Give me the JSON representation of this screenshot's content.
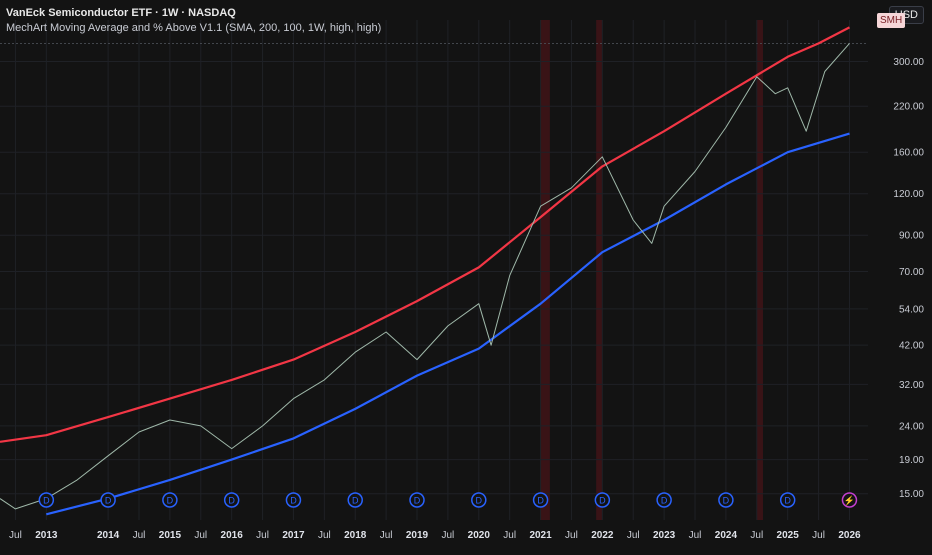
{
  "header": {
    "title": "VanEck Semiconductor ETF · 1W · NASDAQ",
    "indicator": "MechArt Moving Average and % Above V1.1 (SMA, 200, 100, 1W, high, high)",
    "currency": "USD",
    "symbol_badge": "SMH"
  },
  "colors": {
    "upper_band": "#f23645",
    "sma": "#2962ff",
    "price": "#9fb8a9",
    "highlight": "#4a1418",
    "dividend_marker": "#2962ff",
    "split_marker": "#c33fd0"
  },
  "icons": {
    "dividend": "D",
    "split": "⚡"
  },
  "chart_data": {
    "type": "line",
    "title": "VanEck Semiconductor ETF · 1W · NASDAQ",
    "y_scale": "log",
    "ylim": [
      12.5,
      400
    ],
    "xlim": [
      2012.25,
      2026.3
    ],
    "y_ticks": [
      "15.00",
      "19.00",
      "24.00",
      "32.00",
      "42.00",
      "54.00",
      "70.00",
      "90.00",
      "120.00",
      "160.00",
      "220.00",
      "300.00"
    ],
    "x_ticks": [
      {
        "label": "Jul",
        "x": 2012.5
      },
      {
        "label": "2013",
        "x": 2013.0
      },
      {
        "label": "2014",
        "x": 2014.0
      },
      {
        "label": "Jul",
        "x": 2014.5
      },
      {
        "label": "2015",
        "x": 2015.0
      },
      {
        "label": "Jul",
        "x": 2015.5
      },
      {
        "label": "2016",
        "x": 2016.0
      },
      {
        "label": "Jul",
        "x": 2016.5
      },
      {
        "label": "2017",
        "x": 2017.0
      },
      {
        "label": "Jul",
        "x": 2017.5
      },
      {
        "label": "2018",
        "x": 2018.0
      },
      {
        "label": "Jul",
        "x": 2018.5
      },
      {
        "label": "2019",
        "x": 2019.0
      },
      {
        "label": "Jul",
        "x": 2019.5
      },
      {
        "label": "2020",
        "x": 2020.0
      },
      {
        "label": "Jul",
        "x": 2020.5
      },
      {
        "label": "2021",
        "x": 2021.0
      },
      {
        "label": "Jul",
        "x": 2021.5
      },
      {
        "label": "2022",
        "x": 2022.0
      },
      {
        "label": "Jul",
        "x": 2022.5
      },
      {
        "label": "2023",
        "x": 2023.0
      },
      {
        "label": "Jul",
        "x": 2023.5
      },
      {
        "label": "2024",
        "x": 2024.0
      },
      {
        "label": "Jul",
        "x": 2024.5
      },
      {
        "label": "2025",
        "x": 2025.0
      },
      {
        "label": "Jul",
        "x": 2025.5
      },
      {
        "label": "2026",
        "x": 2026.0
      }
    ],
    "last_price": 340,
    "highlight_periods": [
      [
        2021.0,
        2021.15
      ],
      [
        2021.9,
        2022.0
      ],
      [
        2024.5,
        2024.6
      ]
    ],
    "dividend_markers": [
      2013.0,
      2014.0,
      2015.0,
      2016.0,
      2017.0,
      2018.0,
      2019.0,
      2020.0,
      2021.0,
      2022.0,
      2023.0,
      2024.0,
      2025.0
    ],
    "split_marker": 2026.0,
    "series": [
      {
        "name": "Upper band",
        "x": [
          2012.25,
          2013.0,
          2014.0,
          2015.0,
          2016.0,
          2017.0,
          2018.0,
          2019.0,
          2020.0,
          2021.0,
          2022.0,
          2023.0,
          2024.0,
          2025.0,
          2025.5,
          2026.0
        ],
        "values": [
          21.5,
          22.5,
          25.5,
          29,
          33,
          38,
          46,
          57,
          72,
          102,
          145,
          185,
          240,
          310,
          340,
          380
        ]
      },
      {
        "name": "SMA 200",
        "x": [
          2013.0,
          2014.0,
          2015.0,
          2016.0,
          2017.0,
          2018.0,
          2019.0,
          2020.0,
          2021.0,
          2022.0,
          2023.0,
          2024.0,
          2025.0,
          2026.0
        ],
        "values": [
          13,
          14.5,
          16.5,
          19,
          22,
          27,
          34,
          41,
          56,
          80,
          100,
          128,
          160,
          182
        ]
      },
      {
        "name": "Price",
        "x": [
          2012.25,
          2012.5,
          2013.0,
          2013.5,
          2014.0,
          2014.5,
          2015.0,
          2015.5,
          2016.0,
          2016.5,
          2017.0,
          2017.5,
          2018.0,
          2018.5,
          2019.0,
          2019.5,
          2020.0,
          2020.2,
          2020.5,
          2021.0,
          2021.5,
          2022.0,
          2022.5,
          2022.8,
          2023.0,
          2023.5,
          2024.0,
          2024.5,
          2024.8,
          2025.0,
          2025.3,
          2025.6,
          2026.0
        ],
        "values": [
          14.5,
          13.5,
          14.5,
          16.5,
          19.5,
          23,
          25,
          24,
          20.5,
          24,
          29,
          33,
          40,
          46,
          38,
          48,
          56,
          42,
          68,
          110,
          125,
          155,
          100,
          85,
          110,
          140,
          190,
          270,
          240,
          250,
          185,
          280,
          340
        ]
      }
    ]
  }
}
